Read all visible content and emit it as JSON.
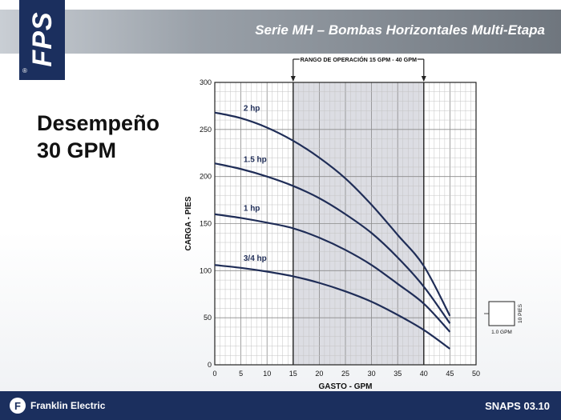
{
  "slide": {
    "logo_text": "FPS",
    "logo_reg": "®",
    "title": "Serie MH – Bombas Horizontales Multi-Etapa",
    "heading_line1": "Desempeño",
    "heading_line2": "30 GPM",
    "footer_brand": "Franklin Electric",
    "footer_code": "SNAPS 03.10"
  },
  "colors": {
    "header_band": "#8a9199",
    "navy": "#1b2f5e",
    "curve": "#1f2d57",
    "shaded_range": "#dcdde3"
  },
  "chart_data": {
    "type": "line",
    "title": "",
    "xlabel": "GASTO - GPM",
    "ylabel": "CARGA - PIES",
    "xlim": [
      0,
      50
    ],
    "ylim": [
      0,
      300
    ],
    "x_ticks": [
      "0",
      "5",
      "10",
      "15",
      "20",
      "25",
      "30",
      "35",
      "40",
      "45",
      "50"
    ],
    "y_ticks": [
      "0",
      "50",
      "100",
      "150",
      "200",
      "250",
      "300"
    ],
    "grid": true,
    "operating_range": {
      "label": "RANGO DE OPERACIÓN 15 GPM - 40 GPM",
      "from": 15,
      "to": 40
    },
    "x": [
      0,
      5,
      10,
      15,
      20,
      25,
      30,
      35,
      40,
      45
    ],
    "series": [
      {
        "name": "2 hp",
        "values": [
          268,
          262,
          252,
          238,
          220,
          198,
          170,
          138,
          105,
          52
        ]
      },
      {
        "name": "1.5 hp",
        "values": [
          214,
          208,
          200,
          190,
          177,
          160,
          140,
          114,
          83,
          44
        ]
      },
      {
        "name": "1 hp",
        "values": [
          160,
          156,
          151,
          145,
          135,
          122,
          106,
          86,
          65,
          35
        ]
      },
      {
        "name": "3/4 hp",
        "values": [
          106,
          103,
          99,
          94,
          87,
          78,
          67,
          53,
          37,
          17
        ]
      }
    ],
    "scale_box": {
      "label_x": "1.0 GPM",
      "label_y": "10 PIES"
    }
  }
}
